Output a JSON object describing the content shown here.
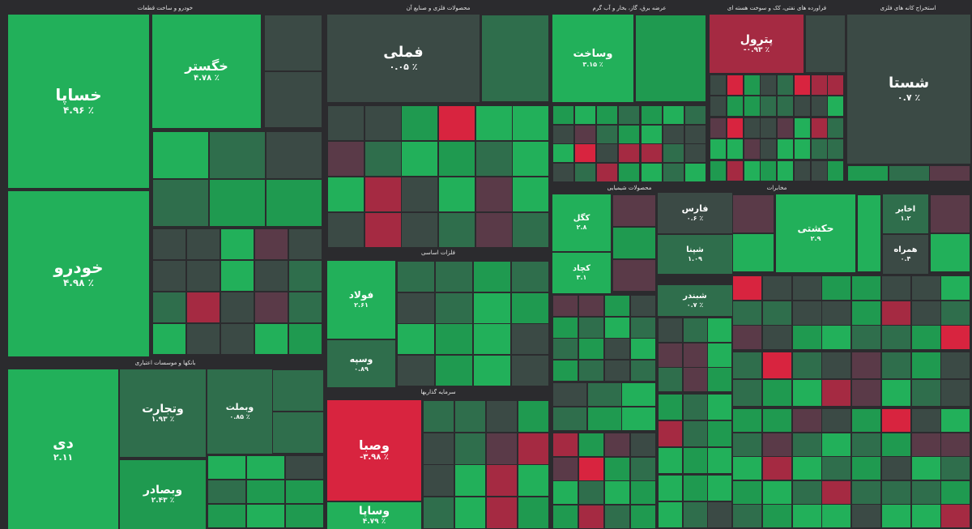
{
  "chart_data": {
    "type": "treemap",
    "colors": {
      "strong_up": "#22b05a",
      "up": "#1f9a50",
      "mild_up": "#2f6e4c",
      "flat": "#3b4a45",
      "mild_down": "#5a3a48",
      "down": "#a52a42",
      "strong_down": "#d8243f",
      "background": "#2b2b2e"
    },
    "sectors": [
      {
        "name": "خودرو و ساخت قطعات"
      },
      {
        "name": "محصولات فلزی و صنایع آن"
      },
      {
        "name": "عرضه برق، گاز، بخار و آب گرم"
      },
      {
        "name": "فراورده های نفتی، کک و سوخت هسته ای"
      },
      {
        "name": "استخراج کانه های فلزی"
      },
      {
        "name": "بانکها و موسسات اعتباری"
      },
      {
        "name": "فلزات اساسی"
      },
      {
        "name": "سرمایه گذاریها"
      },
      {
        "name": "محصولات شیمیایی"
      },
      {
        "name": "مخابرات"
      }
    ],
    "tiles": [
      {
        "symbol": "خساپا",
        "change": "۴.۹۶ ٪",
        "trend": "strong_up"
      },
      {
        "symbol": "خودرو",
        "change": "۴.۹۸ ٪",
        "trend": "strong_up"
      },
      {
        "symbol": "خگستر",
        "change": "۴.۷۸ ٪",
        "trend": "strong_up"
      },
      {
        "symbol": "دی",
        "change": "۲.۱۱",
        "trend": "strong_up"
      },
      {
        "symbol": "وتجارت",
        "change": "۱.۹۳ ٪",
        "trend": "mild_up"
      },
      {
        "symbol": "وبصادر",
        "change": "۲.۴۳ ٪",
        "trend": "up"
      },
      {
        "symbol": "وبملت",
        "change": "۰.۸۵ ٪",
        "trend": "mild_up"
      },
      {
        "symbol": "فملی",
        "change": "۰.۰۵ ٪",
        "trend": "flat"
      },
      {
        "symbol": "فولاد",
        "change": "۲.۶۱",
        "trend": "strong_up"
      },
      {
        "symbol": "وصبا",
        "change": "-۳.۹۸ ٪",
        "trend": "strong_down"
      },
      {
        "symbol": "وسپه",
        "change": "۰.۸۹",
        "trend": "mild_up"
      },
      {
        "symbol": "وساپا",
        "change": "۴.۷۹ ٪",
        "trend": "strong_up"
      },
      {
        "symbol": "وساخت",
        "change": "۳.۱۵ ٪",
        "trend": "strong_up"
      },
      {
        "symbol": "پترول",
        "change": "-۰.۹۳ ٪",
        "trend": "down"
      },
      {
        "symbol": "شستا",
        "change": "۰.۷ ٪",
        "trend": "flat"
      },
      {
        "symbol": "فارس",
        "change": "۰.۶ ٪",
        "trend": "flat"
      },
      {
        "symbol": "شپنا",
        "change": "۱.۰۹",
        "trend": "mild_up"
      },
      {
        "symbol": "شبندر",
        "change": "۰.۷ ٪",
        "trend": "mild_up"
      },
      {
        "symbol": "کگل",
        "change": "۲.۸",
        "trend": "strong_up"
      },
      {
        "symbol": "کچاد",
        "change": "۳.۱",
        "trend": "strong_up"
      },
      {
        "symbol": "حکشتی",
        "change": "۲.۹",
        "trend": "strong_up"
      },
      {
        "symbol": "همراه",
        "change": "۰.۴",
        "trend": "flat"
      },
      {
        "symbol": "اخابر",
        "change": "۱.۲",
        "trend": "mild_up"
      }
    ]
  }
}
